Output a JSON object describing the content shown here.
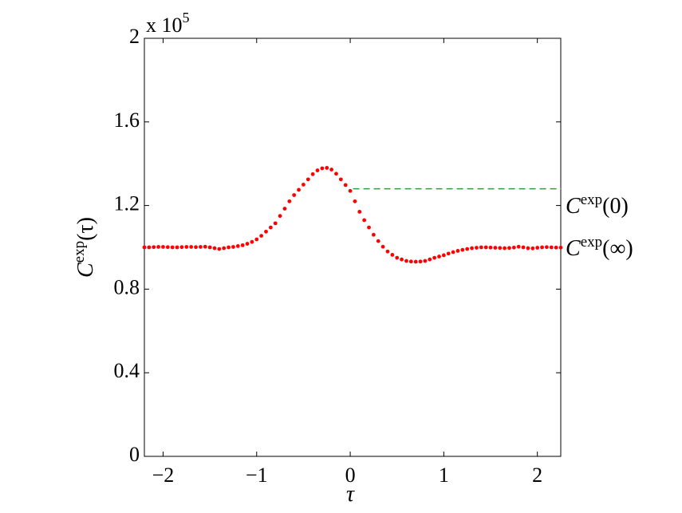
{
  "chart_data": {
    "type": "scatter",
    "xlabel": "τ",
    "ylabel": {
      "main": "C",
      "sup": "exp",
      "arg": "(τ)"
    },
    "y_multiplier": {
      "base": "x 10",
      "exponent": "5"
    },
    "annotations": [
      {
        "main": "C",
        "sup": "exp",
        "arg": "(0)"
      },
      {
        "main": "C",
        "sup": "exp",
        "arg": "(∞)"
      }
    ],
    "xlim": [
      -2.2,
      2.25
    ],
    "ylim": [
      0,
      2
    ],
    "xticks": [
      {
        "value": -2,
        "label": "−2"
      },
      {
        "value": -1,
        "label": "−1"
      },
      0,
      1,
      2
    ],
    "yticks": [
      0,
      0.4,
      0.8,
      1.2,
      1.6,
      2
    ],
    "grid": false,
    "hline": {
      "y": 1.28,
      "x_start": 0.03,
      "color": "#3a9a3a"
    },
    "series": [
      {
        "color": "#ff0000",
        "x": [
          -2.2,
          -2.15,
          -2.1,
          -2.05,
          -2.0,
          -1.95,
          -1.9,
          -1.85,
          -1.8,
          -1.75,
          -1.7,
          -1.65,
          -1.6,
          -1.55,
          -1.5,
          -1.45,
          -1.4,
          -1.35,
          -1.3,
          -1.25,
          -1.2,
          -1.15,
          -1.1,
          -1.05,
          -1.0,
          -0.95,
          -0.9,
          -0.85,
          -0.8,
          -0.75,
          -0.7,
          -0.65,
          -0.6,
          -0.55,
          -0.5,
          -0.45,
          -0.4,
          -0.35,
          -0.3,
          -0.25,
          -0.2,
          -0.15,
          -0.1,
          -0.05,
          0.0,
          0.05,
          0.1,
          0.15,
          0.2,
          0.25,
          0.3,
          0.35,
          0.4,
          0.45,
          0.5,
          0.55,
          0.6,
          0.65,
          0.7,
          0.75,
          0.8,
          0.85,
          0.9,
          0.95,
          1.0,
          1.05,
          1.1,
          1.15,
          1.2,
          1.25,
          1.3,
          1.35,
          1.4,
          1.45,
          1.5,
          1.55,
          1.6,
          1.65,
          1.7,
          1.75,
          1.8,
          1.85,
          1.9,
          1.95,
          2.0,
          2.05,
          2.1,
          2.15,
          2.2,
          2.25
        ],
        "values": [
          1.0,
          1.0,
          1.001,
          1.002,
          1.002,
          1.001,
          1.0,
          1.0,
          1.001,
          1.002,
          1.002,
          1.001,
          1.002,
          1.003,
          1.0,
          0.996,
          0.992,
          0.996,
          1.0,
          1.002,
          1.006,
          1.01,
          1.017,
          1.026,
          1.038,
          1.055,
          1.075,
          1.095,
          1.115,
          1.15,
          1.185,
          1.22,
          1.25,
          1.275,
          1.3,
          1.325,
          1.35,
          1.368,
          1.378,
          1.38,
          1.372,
          1.352,
          1.325,
          1.298,
          1.27,
          1.22,
          1.17,
          1.13,
          1.095,
          1.06,
          1.03,
          1.003,
          0.98,
          0.964,
          0.95,
          0.942,
          0.935,
          0.932,
          0.931,
          0.932,
          0.935,
          0.942,
          0.95,
          0.956,
          0.962,
          0.97,
          0.977,
          0.983,
          0.988,
          0.992,
          0.996,
          0.998,
          1.0,
          1.0,
          0.999,
          0.998,
          0.997,
          0.996,
          0.997,
          0.999,
          1.003,
          1.0,
          0.996,
          0.995,
          0.998,
          1.0,
          1.001,
          1.0,
          0.999,
          0.999
        ]
      }
    ]
  }
}
